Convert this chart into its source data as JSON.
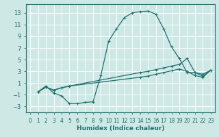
{
  "xlabel": "Humidex (Indice chaleur)",
  "bg_color": "#cde8e5",
  "grid_color": "#ffffff",
  "line_color": "#1e7070",
  "xlim": [
    -0.5,
    23.5
  ],
  "ylim": [
    -4,
    14.5
  ],
  "xticks": [
    0,
    1,
    2,
    3,
    4,
    5,
    6,
    7,
    8,
    9,
    10,
    11,
    12,
    13,
    14,
    15,
    16,
    17,
    18,
    19,
    20,
    21,
    22,
    23
  ],
  "yticks": [
    -3,
    -1,
    1,
    3,
    5,
    7,
    9,
    11,
    13
  ],
  "line1_x": [
    1,
    2,
    3,
    4,
    5,
    6,
    7,
    8,
    9,
    10,
    11,
    12,
    13,
    14,
    15,
    16,
    17,
    18,
    19,
    20,
    21,
    22,
    23
  ],
  "line1_y": [
    -0.5,
    0.5,
    -0.7,
    -1.2,
    -2.5,
    -2.5,
    -2.3,
    -2.2,
    2.3,
    8.2,
    10.3,
    12.2,
    13.0,
    13.2,
    13.3,
    12.8,
    10.3,
    7.2,
    5.2,
    2.8,
    2.8,
    2.2,
    3.2
  ],
  "line2_x": [
    1,
    2,
    3,
    4,
    5,
    14,
    15,
    16,
    17,
    18,
    19,
    20,
    21,
    22,
    23
  ],
  "line2_y": [
    -0.5,
    0.3,
    -0.2,
    0.2,
    0.5,
    2.8,
    3.0,
    3.3,
    3.6,
    3.9,
    4.2,
    5.2,
    2.8,
    2.5,
    3.2
  ],
  "line3_x": [
    1,
    2,
    3,
    4,
    5,
    14,
    15,
    16,
    17,
    18,
    19,
    20,
    21,
    22,
    23
  ],
  "line3_y": [
    -0.5,
    0.3,
    -0.2,
    0.2,
    0.5,
    2.0,
    2.2,
    2.5,
    2.8,
    3.1,
    3.4,
    3.0,
    2.3,
    2.0,
    3.2
  ]
}
